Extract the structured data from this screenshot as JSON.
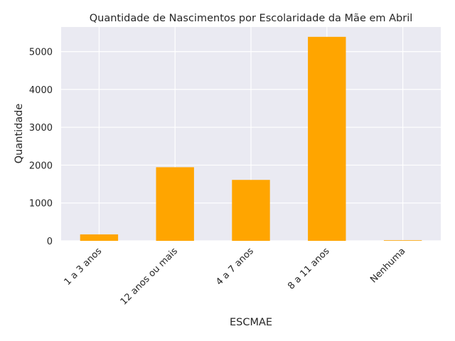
{
  "chart_data": {
    "type": "bar",
    "title": "Quantidade de Nascimentos por Escolaridade da Mãe em Abril",
    "xlabel": "ESCMAE",
    "ylabel": "Quantidade",
    "categories": [
      "1 a 3 anos",
      "12 anos ou mais",
      "4 a 7 anos",
      "8 a 11 anos",
      "Nenhuma"
    ],
    "values": [
      170,
      1945,
      1610,
      5390,
      15
    ],
    "ylim": [
      0,
      5650
    ],
    "yticks": [
      0,
      1000,
      2000,
      3000,
      4000,
      5000
    ],
    "grid": true,
    "legend": "none"
  },
  "colors": {
    "bar": "#ffa500",
    "plot_background": "#eaeaf2",
    "grid": "#ffffff",
    "text": "#262626"
  }
}
